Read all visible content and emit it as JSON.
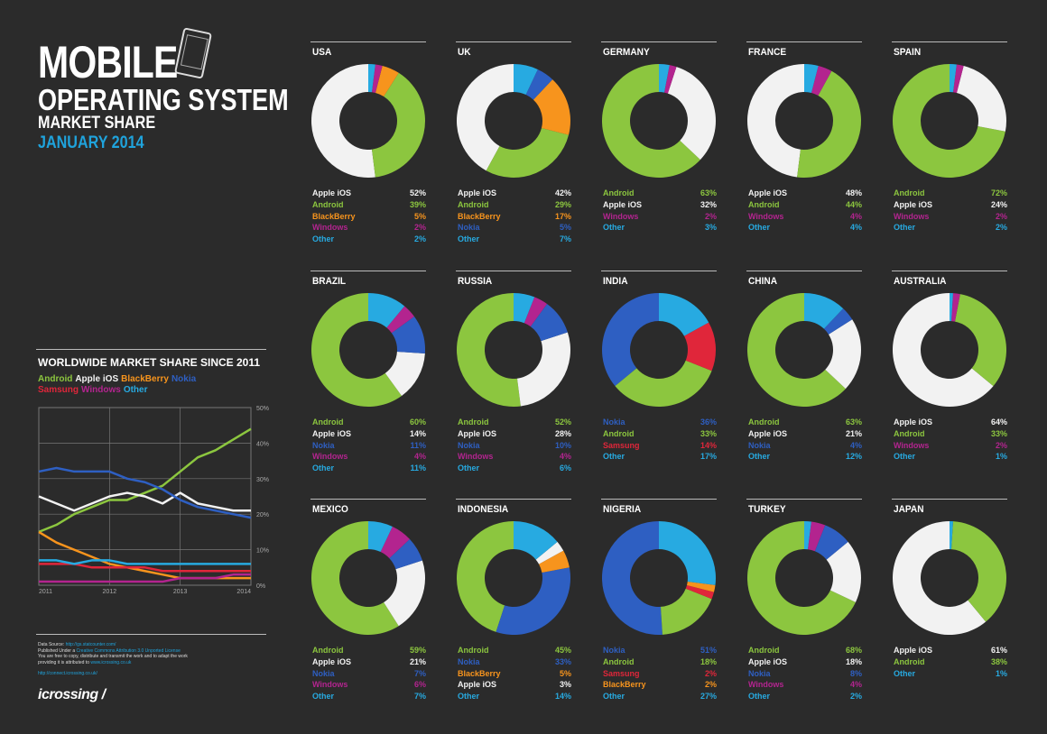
{
  "header": {
    "title_line1": "MOBILE",
    "title_line2": "OPERATING SYSTEM",
    "title_line3": "MARKET SHARE",
    "title_line4": "JANUARY 2014"
  },
  "colors": {
    "Apple iOS": "#f2f2f2",
    "Android": "#8cc63f",
    "BlackBerry": "#f7941d",
    "Windows": "#b3248f",
    "Other": "#27aae1",
    "Nokia": "#2e5fc2",
    "Samsung": "#e0263a"
  },
  "worldwide": {
    "title": "WORLDWIDE MARKET SHARE SINCE 2011",
    "legend": [
      {
        "name": "Android",
        "color": "#8cc63f"
      },
      {
        "name": "Apple iOS",
        "color": "#f2f2f2"
      },
      {
        "name": "BlackBerry",
        "color": "#f7941d"
      },
      {
        "name": "Nokia",
        "color": "#2e5fc2"
      },
      {
        "name": "Samsung",
        "color": "#e0263a"
      },
      {
        "name": "Windows",
        "color": "#b3248f"
      },
      {
        "name": "Other",
        "color": "#27aae1"
      }
    ]
  },
  "credits": {
    "line1": "Data Source:",
    "line1_link": "http://gs.statcounter.com/",
    "line2": "Published Under a",
    "line2_link": "Creative Commons Attribution 3.0 Unported License",
    "line3": "You are free to copy, distribute and transmit the work and to adapt the work",
    "line4": "providing it is attributed to",
    "line4_link": "www.icrossing.co.uk",
    "line5_link": "http://connect.icrossing.co.uk/",
    "logo": "icrossing /"
  },
  "chart_data": [
    {
      "type": "line",
      "title": "WORLDWIDE MARKET SHARE SINCE 2011",
      "x_ticks": [
        "2011",
        "2012",
        "2013",
        "2014"
      ],
      "y_ticks": [
        "0%",
        "10%",
        "20%",
        "30%",
        "40%",
        "50%"
      ],
      "ylim": [
        0,
        50
      ],
      "xlim": [
        2011,
        2014
      ],
      "grid": true,
      "x": [
        2011.0,
        2011.25,
        2011.5,
        2011.75,
        2012.0,
        2012.25,
        2012.5,
        2012.75,
        2013.0,
        2013.25,
        2013.5,
        2013.75,
        2014.0
      ],
      "series": [
        {
          "name": "Android",
          "color": "#8cc63f",
          "values": [
            15,
            17,
            20,
            22,
            24,
            24,
            26,
            28,
            32,
            36,
            38,
            41,
            44
          ]
        },
        {
          "name": "Apple iOS",
          "color": "#f2f2f2",
          "values": [
            25,
            23,
            21,
            23,
            25,
            26,
            25,
            23,
            26,
            23,
            22,
            21,
            21
          ]
        },
        {
          "name": "BlackBerry",
          "color": "#f7941d",
          "values": [
            15,
            12,
            10,
            8,
            6,
            5,
            4,
            3,
            2,
            2,
            2,
            2,
            2
          ]
        },
        {
          "name": "Nokia",
          "color": "#2e5fc2",
          "values": [
            32,
            33,
            32,
            32,
            32,
            30,
            29,
            27,
            24,
            22,
            21,
            20,
            19
          ]
        },
        {
          "name": "Samsung",
          "color": "#e0263a",
          "values": [
            6,
            6,
            6,
            5,
            5,
            5,
            5,
            4,
            4,
            4,
            4,
            4,
            4
          ]
        },
        {
          "name": "Windows",
          "color": "#b3248f",
          "values": [
            1,
            1,
            1,
            1,
            1,
            1,
            1,
            1,
            2,
            2,
            2,
            3,
            3
          ]
        },
        {
          "name": "Other",
          "color": "#27aae1",
          "values": [
            7,
            7,
            6,
            7,
            7,
            6,
            6,
            6,
            6,
            6,
            6,
            6,
            6
          ]
        }
      ]
    },
    {
      "type": "pie",
      "title": "USA",
      "slices": [
        {
          "label": "Apple iOS",
          "value": 52
        },
        {
          "label": "Android",
          "value": 39
        },
        {
          "label": "BlackBerry",
          "value": 5
        },
        {
          "label": "Windows",
          "value": 2
        },
        {
          "label": "Other",
          "value": 2
        }
      ]
    },
    {
      "type": "pie",
      "title": "UK",
      "slices": [
        {
          "label": "Apple iOS",
          "value": 42
        },
        {
          "label": "Android",
          "value": 29
        },
        {
          "label": "BlackBerry",
          "value": 17
        },
        {
          "label": "Nokia",
          "value": 5
        },
        {
          "label": "Other",
          "value": 7
        }
      ]
    },
    {
      "type": "pie",
      "title": "GERMANY",
      "slices": [
        {
          "label": "Android",
          "value": 63
        },
        {
          "label": "Apple iOS",
          "value": 32
        },
        {
          "label": "Windows",
          "value": 2
        },
        {
          "label": "Other",
          "value": 3
        }
      ]
    },
    {
      "type": "pie",
      "title": "FRANCE",
      "slices": [
        {
          "label": "Apple iOS",
          "value": 48
        },
        {
          "label": "Android",
          "value": 44
        },
        {
          "label": "Windows",
          "value": 4
        },
        {
          "label": "Other",
          "value": 4
        }
      ]
    },
    {
      "type": "pie",
      "title": "SPAIN",
      "slices": [
        {
          "label": "Android",
          "value": 72
        },
        {
          "label": "Apple iOS",
          "value": 24
        },
        {
          "label": "Windows",
          "value": 2
        },
        {
          "label": "Other",
          "value": 2
        }
      ]
    },
    {
      "type": "pie",
      "title": "BRAZIL",
      "slices": [
        {
          "label": "Android",
          "value": 60
        },
        {
          "label": "Apple iOS",
          "value": 14
        },
        {
          "label": "Nokia",
          "value": 11
        },
        {
          "label": "Windows",
          "value": 4
        },
        {
          "label": "Other",
          "value": 11
        }
      ]
    },
    {
      "type": "pie",
      "title": "RUSSIA",
      "slices": [
        {
          "label": "Android",
          "value": 52
        },
        {
          "label": "Apple iOS",
          "value": 28
        },
        {
          "label": "Nokia",
          "value": 10
        },
        {
          "label": "Windows",
          "value": 4
        },
        {
          "label": "Other",
          "value": 6
        }
      ]
    },
    {
      "type": "pie",
      "title": "INDIA",
      "slices": [
        {
          "label": "Nokia",
          "value": 36
        },
        {
          "label": "Android",
          "value": 33
        },
        {
          "label": "Samsung",
          "value": 14
        },
        {
          "label": "Other",
          "value": 17
        }
      ]
    },
    {
      "type": "pie",
      "title": "CHINA",
      "slices": [
        {
          "label": "Android",
          "value": 63
        },
        {
          "label": "Apple iOS",
          "value": 21
        },
        {
          "label": "Nokia",
          "value": 4
        },
        {
          "label": "Other",
          "value": 12
        }
      ]
    },
    {
      "type": "pie",
      "title": "AUSTRALIA",
      "slices": [
        {
          "label": "Apple iOS",
          "value": 64
        },
        {
          "label": "Android",
          "value": 33
        },
        {
          "label": "Windows",
          "value": 2
        },
        {
          "label": "Other",
          "value": 1
        }
      ]
    },
    {
      "type": "pie",
      "title": "MEXICO",
      "slices": [
        {
          "label": "Android",
          "value": 59
        },
        {
          "label": "Apple iOS",
          "value": 21
        },
        {
          "label": "Nokia",
          "value": 7
        },
        {
          "label": "Windows",
          "value": 6
        },
        {
          "label": "Other",
          "value": 7
        }
      ]
    },
    {
      "type": "pie",
      "title": "INDONESIA",
      "slices": [
        {
          "label": "Android",
          "value": 45
        },
        {
          "label": "Nokia",
          "value": 33
        },
        {
          "label": "BlackBerry",
          "value": 5
        },
        {
          "label": "Apple iOS",
          "value": 3
        },
        {
          "label": "Other",
          "value": 14
        }
      ]
    },
    {
      "type": "pie",
      "title": "NIGERIA",
      "slices": [
        {
          "label": "Nokia",
          "value": 51
        },
        {
          "label": "Android",
          "value": 18
        },
        {
          "label": "Samsung",
          "value": 2
        },
        {
          "label": "BlackBerry",
          "value": 2
        },
        {
          "label": "Other",
          "value": 27
        }
      ]
    },
    {
      "type": "pie",
      "title": "TURKEY",
      "slices": [
        {
          "label": "Android",
          "value": 68
        },
        {
          "label": "Apple iOS",
          "value": 18
        },
        {
          "label": "Nokia",
          "value": 8
        },
        {
          "label": "Windows",
          "value": 4
        },
        {
          "label": "Other",
          "value": 2
        }
      ]
    },
    {
      "type": "pie",
      "title": "JAPAN",
      "slices": [
        {
          "label": "Apple iOS",
          "value": 61
        },
        {
          "label": "Android",
          "value": 38
        },
        {
          "label": "Other",
          "value": 1
        }
      ]
    }
  ]
}
